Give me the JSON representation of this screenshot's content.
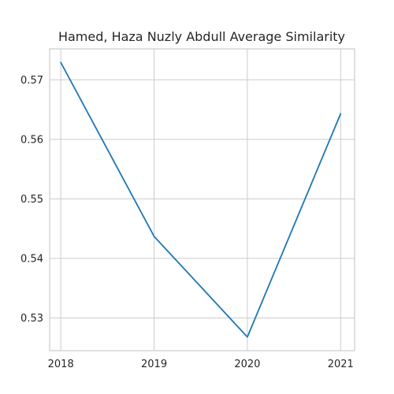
{
  "chart_data": {
    "type": "line",
    "title": "Hamed, Haza Nuzly Abdull Average Similarity",
    "xlabel": "",
    "ylabel": "",
    "x": [
      "2018",
      "2019",
      "2020",
      "2021"
    ],
    "series": [
      {
        "values": [
          0.5729,
          0.5437,
          0.5268,
          0.5643
        ],
        "color": "#1f77b4"
      }
    ],
    "xlim": [
      2017.88,
      2021.15
    ],
    "ylim": [
      0.5245,
      0.5752
    ],
    "yticks": [
      "0.53",
      "0.54",
      "0.55",
      "0.56",
      "0.57"
    ],
    "yticks_values": [
      0.53,
      0.54,
      0.55,
      0.56,
      0.57
    ],
    "grid": true,
    "legend": "none"
  }
}
